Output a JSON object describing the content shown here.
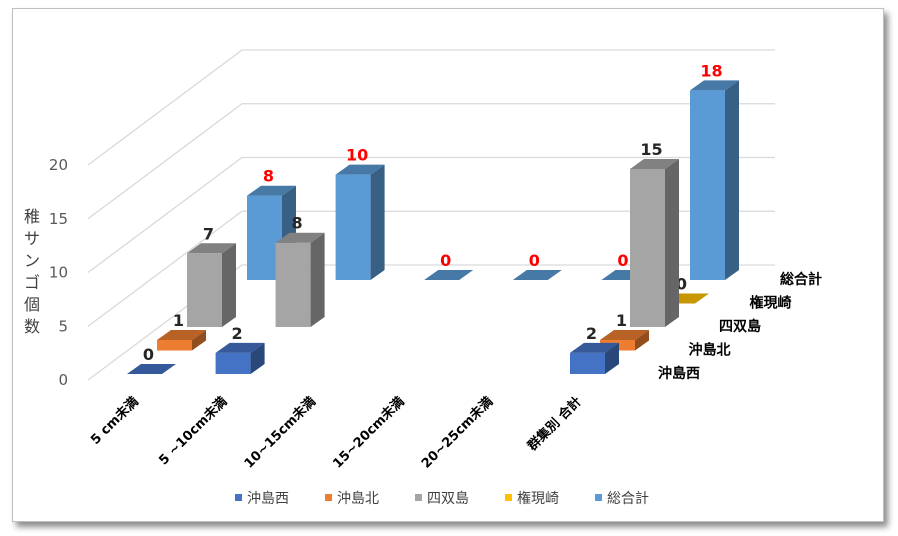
{
  "chart_data": {
    "type": "bar",
    "title": "",
    "ylabel": "稚サンゴ個数",
    "xlabel": "",
    "ylim": [
      0,
      20
    ],
    "yticks": [
      "0",
      "5",
      "10",
      "15",
      "20"
    ],
    "categories": [
      "5 cm未満",
      "5 ~10cm未満",
      "10~15cm未満",
      "15~20cm未満",
      "20~25cm未満",
      "群集別 合計"
    ],
    "series": [
      {
        "name": "沖島西",
        "color": "#4472c4",
        "values": [
          0,
          2,
          null,
          null,
          null,
          2
        ],
        "label_color": "#262626"
      },
      {
        "name": "沖島北",
        "color": "#ed7d31",
        "values": [
          1,
          null,
          null,
          null,
          null,
          1
        ],
        "label_color": "#262626"
      },
      {
        "name": "四双島",
        "color": "#a5a5a5",
        "values": [
          7,
          8,
          null,
          null,
          null,
          15
        ],
        "label_color": "#262626"
      },
      {
        "name": "権現崎",
        "color": "#ffc000",
        "values": [
          null,
          null,
          null,
          null,
          null,
          0
        ],
        "label_color": "#262626"
      },
      {
        "name": "総合計",
        "color": "#5b9bd5",
        "values": [
          8,
          10,
          0,
          0,
          0,
          18
        ],
        "label_color": "#ff0000"
      }
    ],
    "legend_position": "bottom",
    "grid": true,
    "chart_style": "3d-column"
  }
}
